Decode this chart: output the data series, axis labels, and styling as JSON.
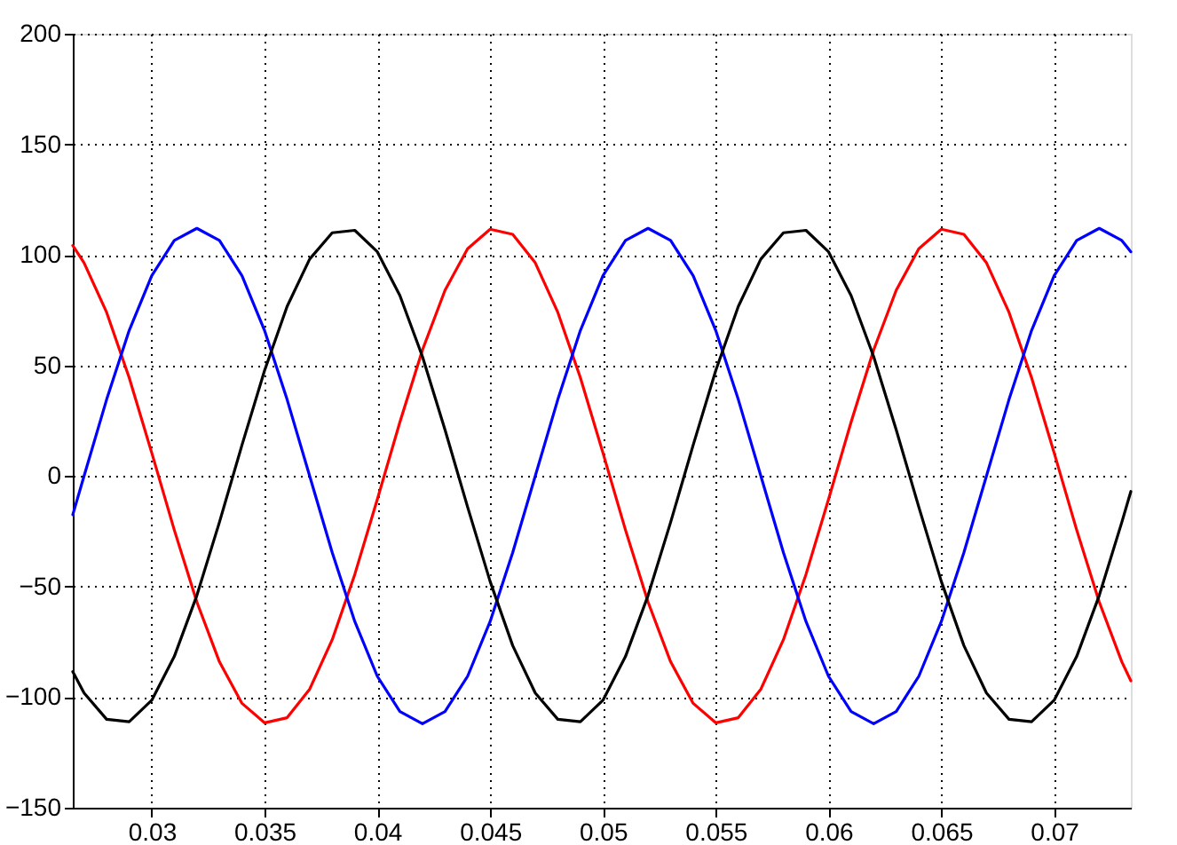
{
  "chart_data": {
    "type": "line",
    "x": [
      0.0265,
      0.027,
      0.028,
      0.029,
      0.03,
      0.031,
      0.032,
      0.033,
      0.034,
      0.035,
      0.036,
      0.037,
      0.038,
      0.039,
      0.04,
      0.041,
      0.042,
      0.043,
      0.044,
      0.045,
      0.046,
      0.047,
      0.048,
      0.049,
      0.05,
      0.051,
      0.052,
      0.053,
      0.054,
      0.055,
      0.056,
      0.057,
      0.058,
      0.059,
      0.06,
      0.061,
      0.062,
      0.063,
      0.064,
      0.065,
      0.066,
      0.067,
      0.068,
      0.069,
      0.07,
      0.071,
      0.072,
      0.073,
      0.0734
    ],
    "series": [
      {
        "color": "#ff0000",
        "values": [
          104.2,
          96.4,
          74.0,
          44.5,
          10.5,
          -24.4,
          -57.0,
          -84.0,
          -102.8,
          -111.6,
          -109.3,
          -96.4,
          -74.0,
          -44.5,
          -10.5,
          24.4,
          57.0,
          84.0,
          102.8,
          111.6,
          109.3,
          96.4,
          74.0,
          44.5,
          10.5,
          -24.4,
          -57.0,
          -84.0,
          -102.8,
          -111.6,
          -109.3,
          -96.4,
          -74.0,
          -44.5,
          -10.5,
          24.4,
          57.0,
          84.0,
          102.8,
          111.6,
          109.3,
          96.4,
          74.0,
          44.5,
          10.5,
          -24.4,
          -57.0,
          -84.0,
          -92.6
        ]
      },
      {
        "color": "#0000ff",
        "values": [
          -17.5,
          0,
          34.6,
          65.8,
          90.6,
          106.5,
          112,
          106.5,
          90.6,
          65.8,
          34.6,
          0,
          -34.6,
          -65.8,
          -90.6,
          -106.5,
          -112,
          -106.5,
          -90.6,
          -65.8,
          -34.6,
          0,
          34.6,
          65.8,
          90.6,
          106.5,
          112,
          106.5,
          90.6,
          65.8,
          34.6,
          0,
          -34.6,
          -65.8,
          -90.6,
          -106.5,
          -112,
          -106.5,
          -90.6,
          -65.8,
          -34.6,
          0,
          34.6,
          65.8,
          90.6,
          106.5,
          112,
          106.5,
          101.4
        ]
      },
      {
        "color": "#000000",
        "values": [
          -88.5,
          -98.1,
          -110.0,
          -111.1,
          -101.4,
          -81.6,
          -54.0,
          -20.9,
          14.0,
          47.7,
          76.7,
          98.1,
          110.0,
          111.1,
          101.4,
          81.6,
          54.0,
          20.9,
          -14.0,
          -47.7,
          -76.7,
          -98.1,
          -110.0,
          -111.1,
          -101.4,
          -81.6,
          -54.0,
          -20.9,
          14.0,
          47.7,
          76.7,
          98.1,
          110.0,
          111.1,
          101.4,
          81.6,
          54.0,
          20.9,
          -14.0,
          -47.7,
          -76.7,
          -98.1,
          -110.0,
          -111.1,
          -101.4,
          -81.6,
          -54.0,
          -20.9,
          -7.0
        ]
      }
    ],
    "xlim": [
      0.0265,
      0.0734
    ],
    "xticks": [
      0.03,
      0.035,
      0.04,
      0.045,
      0.05,
      0.055,
      0.06,
      0.065,
      0.07
    ],
    "ylim": [
      -150,
      200
    ],
    "yticks": [
      -150,
      -100,
      -50,
      0,
      50,
      100,
      150,
      200
    ],
    "grid": true
  }
}
